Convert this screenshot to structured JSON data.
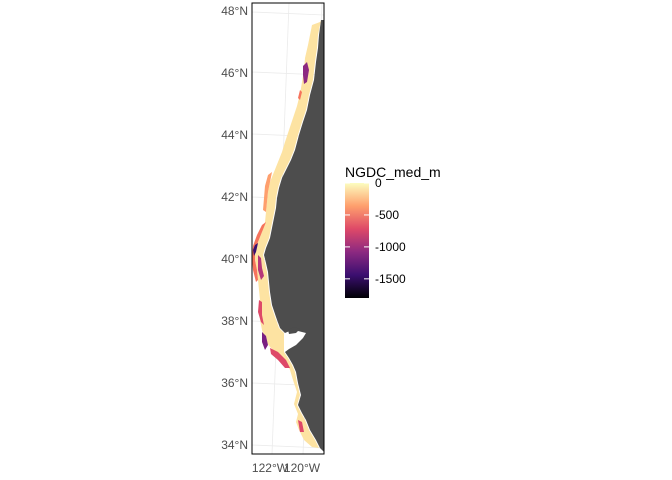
{
  "map": {
    "lat_ticks": [
      {
        "value": 48,
        "label": "48°N"
      },
      {
        "value": 46,
        "label": "46°N"
      },
      {
        "value": 44,
        "label": "44°N"
      },
      {
        "value": 42,
        "label": "42°N"
      },
      {
        "value": 40,
        "label": "40°N"
      },
      {
        "value": 38,
        "label": "38°N"
      },
      {
        "value": 36,
        "label": "36°N"
      },
      {
        "value": 34,
        "label": "34°N"
      }
    ],
    "lon_ticks": [
      {
        "value": -122,
        "label": "122°W"
      },
      {
        "value": -120,
        "label": "120°W"
      }
    ],
    "lat_range": [
      33.7,
      48.2
    ],
    "lon_range": [
      -124.5,
      -119.9
    ],
    "land_color": "#4d4d4d",
    "graticule_color": "#ebebeb"
  },
  "legend": {
    "title": "NGDC_med_m",
    "breaks": [
      {
        "value": 0,
        "label": "0"
      },
      {
        "value": -500,
        "label": "-500"
      },
      {
        "value": -1000,
        "label": "-1000"
      },
      {
        "value": -1500,
        "label": "-1500"
      }
    ],
    "range": [
      -1800,
      0
    ],
    "palette": [
      "#000004",
      "#3b0f70",
      "#8c2981",
      "#de4968",
      "#fe9f6d",
      "#fcfdbf"
    ]
  }
}
